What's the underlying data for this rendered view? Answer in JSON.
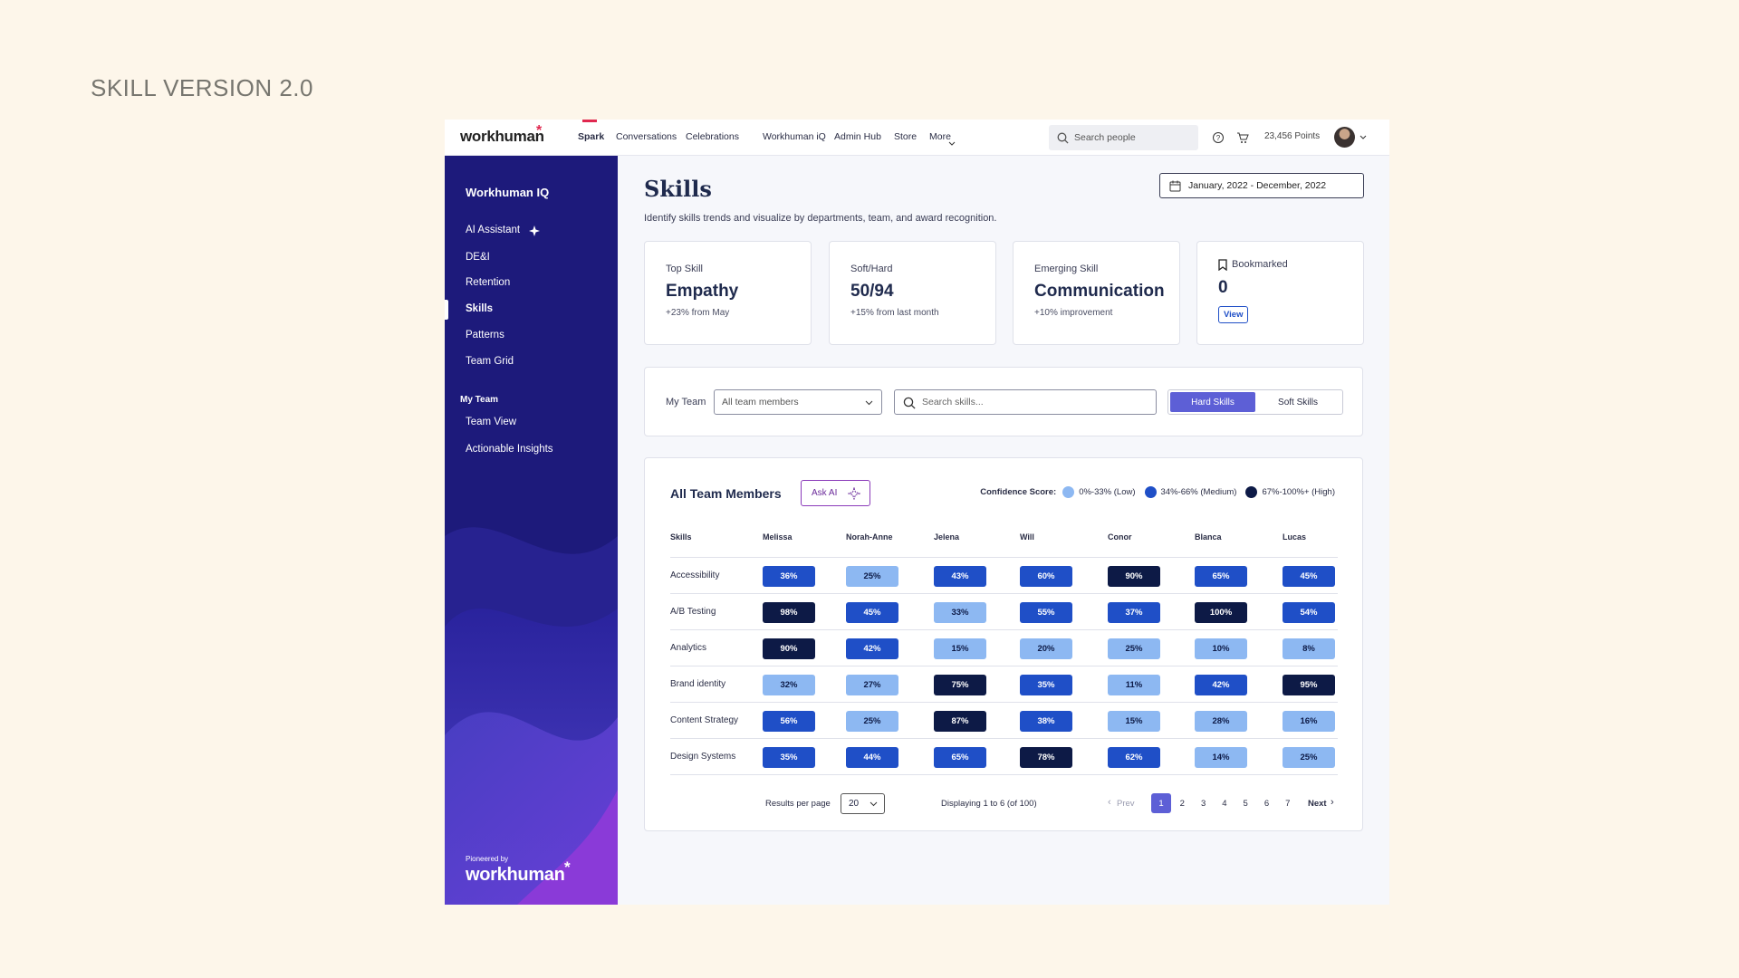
{
  "page_title": "SKILL VERSION 2.0",
  "nav": {
    "logo": "workhuman",
    "links": [
      "Spark",
      "Conversations",
      "Celebrations",
      "Workhuman iQ",
      "Admin Hub",
      "Store",
      "More"
    ],
    "active_link": 0,
    "search_placeholder": "Search people",
    "points": "23,456 Points"
  },
  "sidebar": {
    "title": "Workhuman IQ",
    "items": [
      "AI Assistant",
      "DE&I",
      "Retention",
      "Skills",
      "Patterns",
      "Team Grid"
    ],
    "active_item": 3,
    "section": "My Team",
    "section_items": [
      "Team View",
      "Actionable Insights"
    ],
    "footer_caption": "Pioneered by",
    "footer_logo": "workhuman"
  },
  "header": {
    "title": "Skills",
    "subtitle": "Identify skills trends and visualize by departments, team, and award recognition.",
    "date_range": "January, 2022 - December, 2022"
  },
  "cards": [
    {
      "label": "Top Skill",
      "value": "Empathy",
      "note": "+23% from May"
    },
    {
      "label": "Soft/Hard",
      "value": "50/94",
      "note": "+15% from last month"
    },
    {
      "label": "Emerging Skill",
      "value": "Communication",
      "note": "+10% improvement"
    },
    {
      "label": "Bookmarked",
      "value": "0",
      "action": "View"
    }
  ],
  "filters": {
    "label": "My Team",
    "team_select": "All team members",
    "search_placeholder": "Search skills...",
    "toggles": [
      "Hard Skills",
      "Soft Skills"
    ],
    "active_toggle": 0
  },
  "table": {
    "title": "All Team Members",
    "ask_ai": "Ask AI",
    "legend_title": "Confidence Score:",
    "legend": [
      {
        "label": "0%-33% (Low)",
        "color": "#8db8f2"
      },
      {
        "label": "34%-66% (Medium)",
        "color": "#1f4fc7"
      },
      {
        "label": "67%-100%+ (High)",
        "color": "#0d1a46"
      }
    ],
    "columns": [
      "Skills",
      "Melissa",
      "Norah-Anne",
      "Jelena",
      "Will",
      "Conor",
      "Blanca",
      "Lucas"
    ],
    "rows": [
      [
        "Accessibility",
        "36%",
        "25%",
        "43%",
        "60%",
        "90%",
        "65%",
        "45%"
      ],
      [
        "A/B Testing",
        "98%",
        "45%",
        "33%",
        "55%",
        "37%",
        "100%",
        "54%"
      ],
      [
        "Analytics",
        "90%",
        "42%",
        "15%",
        "20%",
        "25%",
        "10%",
        "8%"
      ],
      [
        "Brand identity",
        "32%",
        "27%",
        "75%",
        "35%",
        "11%",
        "42%",
        "95%"
      ],
      [
        "Content Strategy",
        "56%",
        "25%",
        "87%",
        "38%",
        "15%",
        "28%",
        "16%"
      ],
      [
        "Design Systems",
        "35%",
        "44%",
        "65%",
        "78%",
        "62%",
        "14%",
        "25%"
      ]
    ]
  },
  "pagination": {
    "per_page_label": "Results per page",
    "per_page": "20",
    "status": "Displaying 1 to 6 (of 100)",
    "prev": "Prev",
    "pages": [
      "1",
      "2",
      "3",
      "4",
      "5",
      "6",
      "7"
    ],
    "current": 0,
    "next": "Next"
  }
}
